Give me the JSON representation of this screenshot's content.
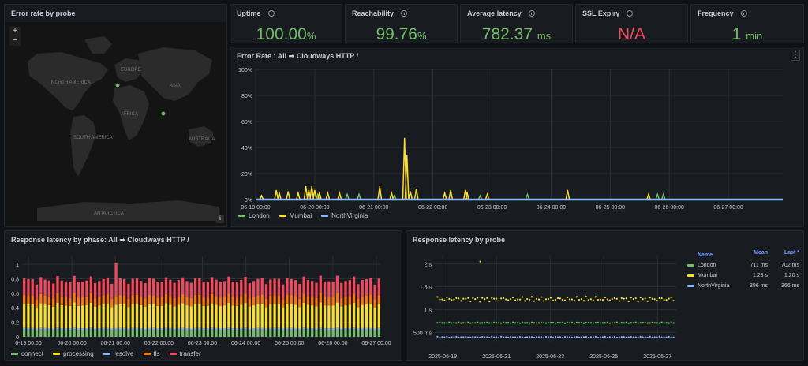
{
  "colors": {
    "green": "#73bf69",
    "yellow": "#fade2a",
    "blue": "#8ab8ff",
    "orange": "#ff780a",
    "red": "#f2495c",
    "grid": "#2c2f36",
    "axis_text": "#ccccdc"
  },
  "map": {
    "title": "Error rate by probe",
    "zoom_in": "+",
    "zoom_out": "−",
    "attribution": "i",
    "labels": [
      "NORTH AMERICA",
      "SOUTH AMERICA",
      "EUROPE",
      "AFRICA",
      "ASIA",
      "AUSTRALIA",
      "ANTARCTICA"
    ]
  },
  "stats": [
    {
      "title": "Uptime",
      "value": "100.00",
      "unit": "%",
      "color": "#73bf69"
    },
    {
      "title": "Reachability",
      "value": "99.76",
      "unit": "%",
      "color": "#73bf69"
    },
    {
      "title": "Average latency",
      "value": "782.37",
      "unit": "ms",
      "color": "#73bf69"
    },
    {
      "title": "SSL Expiry",
      "value": "N/A",
      "unit": "",
      "color": "#f2495c"
    },
    {
      "title": "Frequency",
      "value": "1",
      "unit": "min",
      "color": "#73bf69"
    }
  ],
  "chart_data": [
    {
      "id": "error_rate",
      "type": "line",
      "title": "Error Rate : All ➡ Cloudways HTTP /",
      "menu_icon": "⋮",
      "y_ticks": [
        "100%",
        "80%",
        "60%",
        "40%",
        "20%",
        "0%"
      ],
      "ylim": [
        0,
        100
      ],
      "x_ticks": [
        "06-19 00:00",
        "06-20 00:00",
        "06-21 00:00",
        "06-22 00:00",
        "06-23 00:00",
        "06-24 00:00",
        "06-25 00:00",
        "06-26 00:00",
        "06-27 00:00"
      ],
      "xlim": [
        0,
        8.92
      ],
      "legend_position": "bottom-left",
      "series": [
        {
          "name": "London",
          "color": "#73bf69",
          "spikes": [
            [
              1.05,
              4
            ],
            [
              1.55,
              4
            ],
            [
              1.75,
              4
            ],
            [
              2.35,
              3
            ],
            [
              3.8,
              3
            ],
            [
              4.6,
              4
            ],
            [
              6.8,
              4
            ],
            [
              6.9,
              4
            ]
          ]
        },
        {
          "name": "Mumbai",
          "color": "#fade2a",
          "spikes": [
            [
              0.1,
              3
            ],
            [
              0.35,
              7
            ],
            [
              0.4,
              5
            ],
            [
              0.55,
              6
            ],
            [
              0.72,
              5
            ],
            [
              0.85,
              10
            ],
            [
              0.9,
              7
            ],
            [
              0.95,
              10
            ],
            [
              1.0,
              7
            ],
            [
              1.08,
              5
            ],
            [
              1.22,
              5
            ],
            [
              1.42,
              5
            ],
            [
              2.1,
              10
            ],
            [
              2.3,
              5
            ],
            [
              2.52,
              47
            ],
            [
              2.56,
              34
            ],
            [
              2.62,
              6
            ],
            [
              2.72,
              8
            ],
            [
              3.2,
              5
            ],
            [
              3.3,
              7
            ],
            [
              3.55,
              7
            ],
            [
              3.58,
              5
            ],
            [
              3.92,
              4
            ],
            [
              5.28,
              7
            ],
            [
              6.65,
              4
            ]
          ]
        },
        {
          "name": "NorthVirginia",
          "color": "#8ab8ff",
          "spikes": []
        }
      ]
    },
    {
      "id": "latency_by_phase",
      "type": "bar",
      "title": "Response latency by phase: All ➡ Cloudways HTTP /",
      "y_ticks": [
        "1",
        "0.8",
        "0.6",
        "0.4",
        "0.2",
        "0"
      ],
      "ylim": [
        0,
        1
      ],
      "x_ticks": [
        "6-19 00:00",
        "06-20 00:00",
        "06-21 00:00",
        "06-22 00:00",
        "06-23 00:00",
        "06-24 00:00",
        "06-25 00:00",
        "06-26 00:00",
        "06-27 00:00"
      ],
      "bar_count": 86,
      "legend_position": "bottom-left",
      "series": [
        {
          "name": "connect",
          "color": "#73bf69",
          "value": 0.1
        },
        {
          "name": "processing",
          "color": "#fade2a",
          "value": 0.32
        },
        {
          "name": "resolve",
          "color": "#8ab8ff",
          "value": 0.02
        },
        {
          "name": "tls",
          "color": "#ff780a",
          "value": 0.12
        },
        {
          "name": "transfer",
          "color": "#f2495c",
          "value": 0.22
        }
      ],
      "outlier": {
        "index": 22,
        "total": 1.02
      }
    },
    {
      "id": "latency_by_probe",
      "type": "scatter",
      "title": "Response latency by probe",
      "y_ticks": [
        "2 s",
        "1.5 s",
        "1 s",
        "500 ms"
      ],
      "y_tick_values": [
        2000,
        1500,
        1000,
        500
      ],
      "ylim": [
        300,
        2200
      ],
      "x_ticks": [
        "2025-06-19",
        "2025-06-21",
        "2025-06-23",
        "2025-06-25",
        "2025-06-27"
      ],
      "xlim": [
        -0.3,
        8.7
      ],
      "legend_position": "right",
      "table_headers": {
        "name": "Name",
        "mean": "Mean",
        "last": "Last *"
      },
      "series": [
        {
          "name": "London",
          "color": "#73bf69",
          "mean": "711 ms",
          "last": "702 ms",
          "level_ms": 711
        },
        {
          "name": "Mumbai",
          "color": "#fade2a",
          "mean": "1.23 s",
          "last": "1.20 s",
          "level_ms": 1230,
          "outlier": [
            1.4,
            2050
          ]
        },
        {
          "name": "NorthVirginia",
          "color": "#8ab8ff",
          "mean": "396 ms",
          "last": "366 ms",
          "level_ms": 396
        }
      ]
    }
  ]
}
